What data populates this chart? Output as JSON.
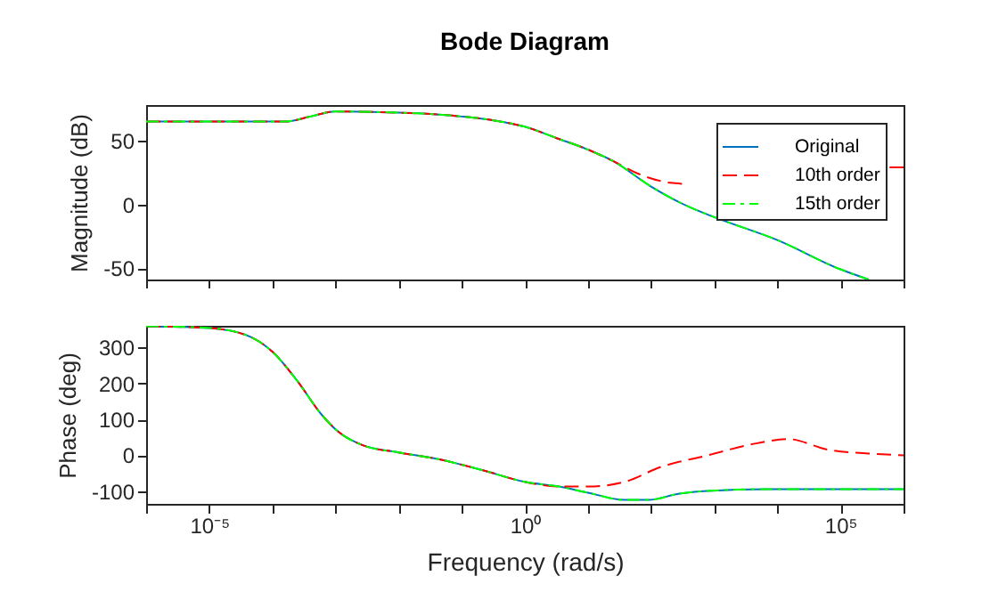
{
  "chart_data": [
    {
      "type": "line",
      "title": "Bode Diagram",
      "ylabel": "Magnitude (dB)",
      "log": "x",
      "xlim": [
        1e-06,
        1000000.0
      ],
      "ylim": [
        -59,
        78
      ],
      "yticks": [
        -50,
        0,
        50
      ],
      "xticks": [
        {
          "value": 1e-06,
          "label": null
        },
        {
          "value": 1e-05,
          "label": null
        },
        {
          "value": 0.0001,
          "label": null
        },
        {
          "value": 0.001,
          "label": null
        },
        {
          "value": 0.01,
          "label": null
        },
        {
          "value": 0.1,
          "label": null
        },
        {
          "value": 1,
          "label": null
        },
        {
          "value": 10,
          "label": null
        },
        {
          "value": 100,
          "label": null
        },
        {
          "value": 1000,
          "label": null
        },
        {
          "value": 10000.0,
          "label": null
        },
        {
          "value": 100000.0,
          "label": null
        },
        {
          "value": 1000000.0,
          "label": null
        }
      ],
      "tick_labels": "y",
      "legend": "top right",
      "grid": false,
      "series": [
        {
          "name": "Original",
          "color": "#0072bd",
          "line_style": "solid",
          "x": [
            1e-06,
            0.00016,
            0.0004,
            0.001,
            0.01,
            0.032,
            0.1,
            0.32,
            1,
            3.2,
            10,
            25,
            100,
            400,
            1000,
            10000.0,
            100000.0,
            280000.0
          ],
          "values": [
            65,
            65,
            69,
            73,
            72,
            71,
            69,
            66,
            61,
            52,
            43,
            34,
            14,
            -2,
            -10,
            -28,
            -51,
            -59
          ]
        },
        {
          "name": "10th order",
          "color": "#ff0000",
          "line_style": "dashed",
          "x": [
            1e-06,
            0.00016,
            0.0004,
            0.001,
            0.01,
            0.032,
            0.1,
            0.32,
            1,
            3.2,
            10,
            25,
            63,
            200,
            400,
            3200,
            32000,
            320000.0,
            600000.0,
            1000000.0
          ],
          "values": [
            65,
            65,
            69,
            73,
            72,
            71,
            69,
            66,
            61,
            52,
            43,
            34,
            24,
            17,
            16,
            null,
            null,
            null,
            29,
            29
          ]
        },
        {
          "name": "15th order",
          "color": "#00ff00",
          "line_style": "dashdot",
          "x": [
            1e-06,
            0.00016,
            0.0004,
            0.001,
            0.01,
            0.032,
            0.1,
            0.32,
            1,
            3.2,
            10,
            25,
            100,
            400,
            1000,
            10000.0,
            100000.0,
            280000.0
          ],
          "values": [
            65,
            65,
            69,
            73,
            72,
            71,
            69,
            66,
            61,
            52,
            43,
            34,
            14,
            -2,
            -10,
            -28,
            -51,
            -59
          ]
        }
      ]
    },
    {
      "type": "line",
      "xlabel": "Frequency (rad/s)",
      "ylabel": "Phase (deg)",
      "log": "x",
      "xlim": [
        1e-06,
        1000000.0
      ],
      "ylim": [
        -135,
        360
      ],
      "yticks": [
        -100,
        0,
        100,
        200,
        300
      ],
      "xticks": [
        {
          "value": 1e-06,
          "label": null
        },
        {
          "value": 1e-05,
          "label": "10⁻⁵"
        },
        {
          "value": 0.0001,
          "label": null
        },
        {
          "value": 0.001,
          "label": null
        },
        {
          "value": 0.01,
          "label": null
        },
        {
          "value": 0.1,
          "label": null
        },
        {
          "value": 1,
          "label": "10⁰"
        },
        {
          "value": 10,
          "label": null
        },
        {
          "value": 100,
          "label": null
        },
        {
          "value": 1000,
          "label": null
        },
        {
          "value": 10000.0,
          "label": null
        },
        {
          "value": 100000.0,
          "label": "10⁵"
        },
        {
          "value": 1000000.0,
          "label": null
        }
      ],
      "grid": false,
      "series": [
        {
          "color": "#0072bd",
          "line_style": "solid",
          "x": [
            1e-06,
            1e-05,
            4.4e-05,
            0.0001,
            0.00025,
            0.00059,
            0.0011,
            0.0027,
            0.01,
            0.046,
            0.21,
            1,
            3.5,
            10,
            38,
            91,
            270,
            790,
            7100,
            1000000.0
          ],
          "values": [
            359,
            354,
            330,
            288,
            206,
            115,
            66,
            28,
            8,
            -12,
            -41,
            -74,
            -87,
            -104,
            -124,
            -124,
            -107,
            -99,
            -94,
            -94
          ]
        },
        {
          "color": "#ff0000",
          "line_style": "dashed",
          "x": [
            1e-06,
            1e-05,
            4.4e-05,
            0.0001,
            0.00025,
            0.00059,
            0.0011,
            0.0027,
            0.01,
            0.046,
            0.21,
            1,
            3.5,
            10,
            38,
            140,
            790,
            4600,
            15000,
            62000,
            280000.0,
            1000000.0
          ],
          "values": [
            359,
            354,
            330,
            288,
            206,
            115,
            66,
            28,
            8,
            -12,
            -41,
            -74,
            -87,
            -87,
            -74,
            -33,
            0,
            33,
            45,
            16,
            5,
            0
          ]
        },
        {
          "color": "#00ff00",
          "line_style": "dashdot",
          "x": [
            1e-06,
            1e-05,
            4.4e-05,
            0.0001,
            0.00025,
            0.00059,
            0.0011,
            0.0027,
            0.01,
            0.046,
            0.21,
            1,
            3.5,
            10,
            38,
            91,
            270,
            790,
            7100,
            1000000.0
          ],
          "values": [
            359,
            354,
            330,
            288,
            206,
            115,
            66,
            28,
            8,
            -12,
            -41,
            -74,
            -87,
            -104,
            -124,
            -124,
            -107,
            -99,
            -94,
            -94
          ]
        }
      ]
    }
  ]
}
